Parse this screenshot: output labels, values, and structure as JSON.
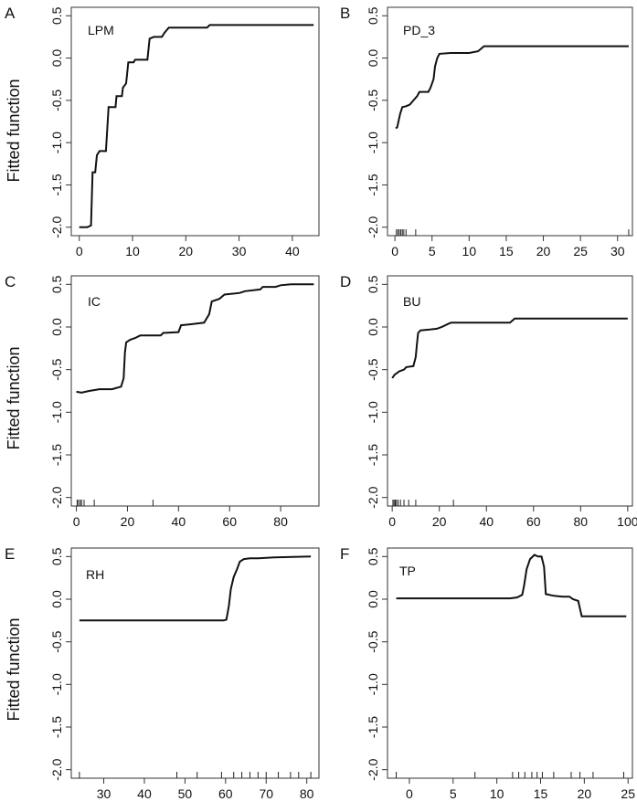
{
  "y_axis_label": "Fitted function",
  "chart_data": [
    {
      "type": "line",
      "panel_letter": "A",
      "title": "LPM",
      "xlim": [
        -1.5,
        45
      ],
      "ylim": [
        -2.1,
        0.6
      ],
      "x_ticks": [
        0,
        10,
        20,
        30,
        40
      ],
      "y_ticks": [
        -2.0,
        -1.5,
        -1.0,
        -0.5,
        0.0,
        0.5
      ],
      "x_tick_labels": [
        "0",
        "10",
        "20",
        "30",
        "40"
      ],
      "y_tick_labels": [
        "-2.0",
        "-1.5",
        "-1.0",
        "-0.5",
        "0.0",
        "0.5"
      ],
      "rug": [],
      "points": [
        [
          0,
          -2.0
        ],
        [
          1.5,
          -2.0
        ],
        [
          2.2,
          -1.98
        ],
        [
          2.5,
          -1.35
        ],
        [
          3.0,
          -1.35
        ],
        [
          3.3,
          -1.15
        ],
        [
          3.8,
          -1.1
        ],
        [
          5.0,
          -1.1
        ],
        [
          5.5,
          -0.58
        ],
        [
          6.8,
          -0.58
        ],
        [
          7.0,
          -0.45
        ],
        [
          8.0,
          -0.45
        ],
        [
          8.2,
          -0.35
        ],
        [
          8.8,
          -0.3
        ],
        [
          9.2,
          -0.05
        ],
        [
          10.2,
          -0.05
        ],
        [
          10.5,
          -0.02
        ],
        [
          12.8,
          -0.02
        ],
        [
          13.2,
          0.23
        ],
        [
          14.0,
          0.25
        ],
        [
          15.5,
          0.25
        ],
        [
          16.0,
          0.3
        ],
        [
          16.8,
          0.36
        ],
        [
          24.0,
          0.36
        ],
        [
          24.5,
          0.39
        ],
        [
          44,
          0.39
        ]
      ]
    },
    {
      "type": "line",
      "panel_letter": "B",
      "title": "PD_3",
      "xlim": [
        -1,
        32
      ],
      "ylim": [
        -2.1,
        0.6
      ],
      "x_ticks": [
        0,
        5,
        10,
        15,
        20,
        25,
        30
      ],
      "y_ticks": [
        -2.0,
        -1.5,
        -1.0,
        -0.5,
        0.0,
        0.5
      ],
      "x_tick_labels": [
        "0",
        "5",
        "10",
        "15",
        "20",
        "25",
        "30"
      ],
      "y_tick_labels": [
        "-2.0",
        "-1.5",
        "-1.0",
        "-0.5",
        "0.0",
        "0.5"
      ],
      "rug": [
        0.2,
        0.4,
        0.6,
        0.8,
        1.0,
        1.2,
        1.5,
        2.8,
        31.5
      ],
      "points": [
        [
          0.1,
          -0.83
        ],
        [
          0.3,
          -0.82
        ],
        [
          0.7,
          -0.66
        ],
        [
          1.0,
          -0.58
        ],
        [
          1.5,
          -0.57
        ],
        [
          2.0,
          -0.55
        ],
        [
          2.5,
          -0.5
        ],
        [
          3.0,
          -0.45
        ],
        [
          3.3,
          -0.4
        ],
        [
          4.5,
          -0.4
        ],
        [
          4.8,
          -0.35
        ],
        [
          5.2,
          -0.25
        ],
        [
          5.4,
          -0.1
        ],
        [
          5.7,
          0.0
        ],
        [
          6.0,
          0.05
        ],
        [
          7.5,
          0.06
        ],
        [
          10.0,
          0.06
        ],
        [
          11.2,
          0.08
        ],
        [
          12.0,
          0.14
        ],
        [
          31.5,
          0.14
        ]
      ]
    },
    {
      "type": "line",
      "panel_letter": "C",
      "title": "IC",
      "xlim": [
        -2,
        95
      ],
      "ylim": [
        -2.1,
        0.6
      ],
      "x_ticks": [
        0,
        20,
        40,
        60,
        80
      ],
      "y_ticks": [
        -2.0,
        -1.5,
        -1.0,
        -0.5,
        0.0,
        0.5
      ],
      "x_tick_labels": [
        "0",
        "20",
        "40",
        "60",
        "80"
      ],
      "y_tick_labels": [
        "-2.0",
        "-1.5",
        "-1.0",
        "-0.5",
        "0.0",
        "0.5"
      ],
      "rug": [
        0.3,
        0.8,
        1.5,
        2.0,
        3.0,
        7.0,
        30.0
      ],
      "points": [
        [
          0,
          -0.76
        ],
        [
          2.0,
          -0.77
        ],
        [
          5.0,
          -0.75
        ],
        [
          9.0,
          -0.73
        ],
        [
          14.0,
          -0.73
        ],
        [
          17.5,
          -0.7
        ],
        [
          18.5,
          -0.6
        ],
        [
          19.0,
          -0.3
        ],
        [
          19.5,
          -0.18
        ],
        [
          21.0,
          -0.15
        ],
        [
          23.0,
          -0.13
        ],
        [
          25.0,
          -0.1
        ],
        [
          33.0,
          -0.1
        ],
        [
          34.0,
          -0.07
        ],
        [
          40.0,
          -0.06
        ],
        [
          41.0,
          0.02
        ],
        [
          44.0,
          0.03
        ],
        [
          50.0,
          0.05
        ],
        [
          52.0,
          0.15
        ],
        [
          53.0,
          0.3
        ],
        [
          56.0,
          0.33
        ],
        [
          58.0,
          0.38
        ],
        [
          64.0,
          0.4
        ],
        [
          66.0,
          0.42
        ],
        [
          72.0,
          0.44
        ],
        [
          73.0,
          0.47
        ],
        [
          78.0,
          0.47
        ],
        [
          80.0,
          0.49
        ],
        [
          84.0,
          0.5
        ],
        [
          93.0,
          0.5
        ]
      ]
    },
    {
      "type": "line",
      "panel_letter": "D",
      "title": "BU",
      "xlim": [
        -2,
        102
      ],
      "ylim": [
        -2.1,
        0.6
      ],
      "x_ticks": [
        0,
        20,
        40,
        60,
        80,
        100
      ],
      "y_ticks": [
        -2.0,
        -1.5,
        -1.0,
        -0.5,
        0.0,
        0.5
      ],
      "x_tick_labels": [
        "0",
        "20",
        "40",
        "60",
        "80",
        "100"
      ],
      "y_tick_labels": [
        "-2.0",
        "-1.5",
        "-1.0",
        "-0.5",
        "0.0",
        "0.5"
      ],
      "rug": [
        0.3,
        0.8,
        1.3,
        1.8,
        2.5,
        3.5,
        5.0,
        7.0,
        10.0,
        26.0
      ],
      "points": [
        [
          0,
          -0.6
        ],
        [
          1.0,
          -0.56
        ],
        [
          2.0,
          -0.54
        ],
        [
          3.0,
          -0.52
        ],
        [
          5.0,
          -0.5
        ],
        [
          6.0,
          -0.47
        ],
        [
          9.0,
          -0.46
        ],
        [
          10.0,
          -0.35
        ],
        [
          10.5,
          -0.2
        ],
        [
          11.0,
          -0.07
        ],
        [
          12.0,
          -0.04
        ],
        [
          16.0,
          -0.03
        ],
        [
          19.0,
          -0.02
        ],
        [
          21.0,
          0.0
        ],
        [
          24.0,
          0.04
        ],
        [
          25.0,
          0.05
        ],
        [
          50.0,
          0.05
        ],
        [
          52.0,
          0.1
        ],
        [
          100,
          0.1
        ]
      ]
    },
    {
      "type": "line",
      "panel_letter": "E",
      "title": "RH",
      "xlim": [
        22,
        83
      ],
      "ylim": [
        -2.1,
        0.6
      ],
      "x_ticks": [
        30,
        40,
        50,
        60,
        70,
        80
      ],
      "y_ticks": [
        -2.0,
        -1.5,
        -1.0,
        -0.5,
        0.0,
        0.5
      ],
      "x_tick_labels": [
        "30",
        "40",
        "50",
        "60",
        "70",
        "80"
      ],
      "y_tick_labels": [
        "-2.0",
        "-1.5",
        "-1.0",
        "-0.5",
        "0.0",
        "0.5"
      ],
      "rug": [
        24,
        48,
        53,
        59,
        62,
        64,
        66,
        68,
        70,
        73,
        76,
        78,
        81
      ],
      "points": [
        [
          24,
          -0.25
        ],
        [
          59.5,
          -0.25
        ],
        [
          60.2,
          -0.24
        ],
        [
          60.8,
          -0.08
        ],
        [
          61.3,
          0.12
        ],
        [
          62.0,
          0.26
        ],
        [
          62.8,
          0.35
        ],
        [
          63.5,
          0.44
        ],
        [
          64.5,
          0.47
        ],
        [
          66.0,
          0.48
        ],
        [
          68.0,
          0.48
        ],
        [
          72.0,
          0.49
        ],
        [
          81,
          0.5
        ]
      ]
    },
    {
      "type": "line",
      "panel_letter": "F",
      "title": "TP",
      "xlim": [
        -2.5,
        25.5
      ],
      "ylim": [
        -2.1,
        0.6
      ],
      "x_ticks": [
        0,
        5,
        10,
        15,
        20,
        25
      ],
      "y_ticks": [
        -2.0,
        -1.5,
        -1.0,
        -0.5,
        0.0,
        0.5
      ],
      "x_tick_labels": [
        "0",
        "5",
        "10",
        "15",
        "20",
        "25"
      ],
      "y_tick_labels": [
        "-2.0",
        "-1.5",
        "-1.0",
        "-0.5",
        "0.0",
        "0.5"
      ],
      "rug": [
        -1.5,
        7.5,
        11.8,
        12.5,
        13.2,
        14.0,
        14.6,
        15.2,
        16.5,
        18.5,
        19.5,
        21.0,
        24.5
      ],
      "points": [
        [
          -1.5,
          0.01
        ],
        [
          11.5,
          0.01
        ],
        [
          12.3,
          0.02
        ],
        [
          12.9,
          0.05
        ],
        [
          13.1,
          0.15
        ],
        [
          13.4,
          0.35
        ],
        [
          13.8,
          0.47
        ],
        [
          14.3,
          0.52
        ],
        [
          14.7,
          0.5
        ],
        [
          15.1,
          0.5
        ],
        [
          15.4,
          0.38
        ],
        [
          15.6,
          0.06
        ],
        [
          16.5,
          0.04
        ],
        [
          17.5,
          0.03
        ],
        [
          18.3,
          0.03
        ],
        [
          18.7,
          0.0
        ],
        [
          19.3,
          -0.02
        ],
        [
          19.7,
          -0.2
        ],
        [
          24.8,
          -0.2
        ]
      ]
    }
  ]
}
